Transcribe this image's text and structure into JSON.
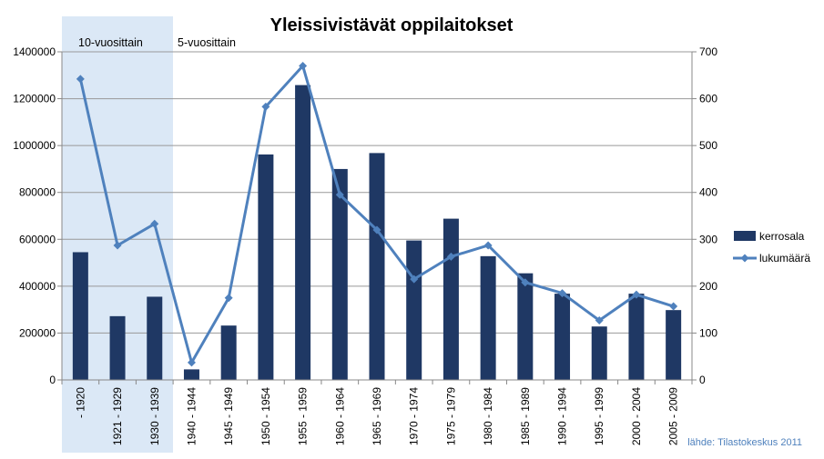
{
  "chart_data": {
    "type": "bar",
    "title": "Yleissivistävät oppilaitokset",
    "categories": [
      "- 1920",
      "1921 - 1929",
      "1930 - 1939",
      "1940 - 1944",
      "1945 - 1949",
      "1950 - 1954",
      "1955 - 1959",
      "1960 - 1964",
      "1965 - 1969",
      "1970 - 1974",
      "1975 - 1979",
      "1980 - 1984",
      "1985 - 1989",
      "1990 - 1994",
      "1995 - 1999",
      "2000 - 2004",
      "2005 - 2009"
    ],
    "series": [
      {
        "name": "kerrosala",
        "type": "bar",
        "axis": "left",
        "color": "#1f3864",
        "values": [
          545000,
          272000,
          355000,
          45000,
          232000,
          962000,
          1258000,
          900000,
          968000,
          595000,
          688000,
          528000,
          455000,
          368000,
          228000,
          368000,
          298000
        ]
      },
      {
        "name": "lukumäärä",
        "type": "line",
        "axis": "right",
        "color": "#4f81bd",
        "values": [
          642,
          287,
          333,
          37,
          175,
          583,
          670,
          395,
          320,
          215,
          263,
          287,
          208,
          185,
          127,
          182,
          157
        ]
      }
    ],
    "y_left": {
      "min": 0,
      "max": 1400000,
      "ticks": [
        "0",
        "200000",
        "400000",
        "600000",
        "800000",
        "1000000",
        "1200000",
        "1400000"
      ]
    },
    "y_right": {
      "min": 0,
      "max": 700,
      "ticks": [
        "0",
        "100",
        "200",
        "300",
        "400",
        "500",
        "600",
        "700"
      ]
    },
    "grid": true,
    "legend_position": "right",
    "annotations": {
      "period_10": "10-vuosittain",
      "period_5": "5-vuosittain",
      "source": "lähde: Tilastokeskus 2011"
    },
    "colors": {
      "bars": "#1f3864",
      "line": "#4f81bd",
      "shade": "#dbe8f6",
      "grid": "#999999",
      "source_text": "#4f81bd"
    }
  }
}
